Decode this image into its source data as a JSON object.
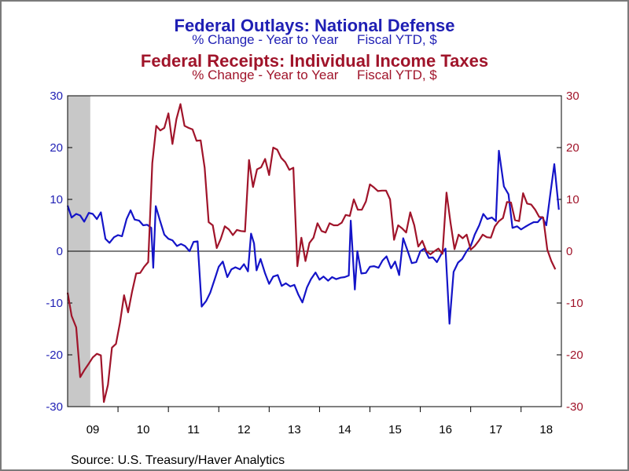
{
  "titles": {
    "line1": "Federal Outlays: National Defense",
    "line2": "% Change - Year to Year     Fiscal YTD, $",
    "line3": "Federal Receipts: Individual Income Taxes",
    "line4": "% Change - Year to Year     Fiscal YTD, $"
  },
  "source": "Source:  U.S. Treasury/Haver Analytics",
  "colors": {
    "defense": "#1414c8",
    "income_tax": "#a0142a",
    "left_axis": "#1f1fb4",
    "right_axis": "#a0142a",
    "recession": "#c8c8c8",
    "plot_bg": "#ffffff"
  },
  "chart_data": {
    "type": "line",
    "x_unit": "fiscal year",
    "x_tick_labels": [
      "09",
      "10",
      "11",
      "12",
      "13",
      "14",
      "15",
      "16",
      "17",
      "18"
    ],
    "xlim": [
      2008.7,
      2018.5
    ],
    "ylim_left": [
      -30,
      30
    ],
    "ylim_right": [
      -30,
      30
    ],
    "y_ticks": [
      -30,
      -20,
      -10,
      0,
      10,
      20,
      30
    ],
    "zero_line": true,
    "recession_shading": [
      [
        2008.7,
        2009.15
      ]
    ],
    "series": [
      {
        "axis": "left",
        "color_key": "defense",
        "points": [
          [
            2008.7,
            8.8
          ],
          [
            2008.78,
            6.5
          ],
          [
            2008.87,
            7.2
          ],
          [
            2008.95,
            6.9
          ],
          [
            2009.03,
            5.7
          ],
          [
            2009.12,
            7.4
          ],
          [
            2009.2,
            7.2
          ],
          [
            2009.28,
            6.2
          ],
          [
            2009.36,
            7.5
          ],
          [
            2009.45,
            2.4
          ],
          [
            2009.53,
            1.6
          ],
          [
            2009.62,
            2.7
          ],
          [
            2009.7,
            3.1
          ],
          [
            2009.78,
            2.9
          ],
          [
            2009.87,
            6.2
          ],
          [
            2009.95,
            7.9
          ],
          [
            2010.03,
            6.1
          ],
          [
            2010.12,
            5.9
          ],
          [
            2010.2,
            5.0
          ],
          [
            2010.28,
            5.1
          ],
          [
            2010.36,
            4.5
          ],
          [
            2010.4,
            -3.2
          ],
          [
            2010.45,
            8.7
          ],
          [
            2010.53,
            6.0
          ],
          [
            2010.62,
            3.2
          ],
          [
            2010.7,
            2.4
          ],
          [
            2010.78,
            2.1
          ],
          [
            2010.87,
            1.0
          ],
          [
            2010.95,
            1.4
          ],
          [
            2011.03,
            1.0
          ],
          [
            2011.12,
            0.0
          ],
          [
            2011.2,
            1.8
          ],
          [
            2011.28,
            1.9
          ],
          [
            2011.36,
            -10.7
          ],
          [
            2011.45,
            -9.6
          ],
          [
            2011.53,
            -8.0
          ],
          [
            2011.62,
            -5.4
          ],
          [
            2011.7,
            -3.0
          ],
          [
            2011.78,
            -2.0
          ],
          [
            2011.87,
            -5.0
          ],
          [
            2011.95,
            -3.5
          ],
          [
            2012.03,
            -3.1
          ],
          [
            2012.12,
            -3.5
          ],
          [
            2012.2,
            -2.5
          ],
          [
            2012.28,
            -3.9
          ],
          [
            2012.34,
            3.4
          ],
          [
            2012.4,
            1.5
          ],
          [
            2012.45,
            -3.7
          ],
          [
            2012.53,
            -1.5
          ],
          [
            2012.62,
            -4.3
          ],
          [
            2012.7,
            -6.3
          ],
          [
            2012.78,
            -4.9
          ],
          [
            2012.87,
            -4.6
          ],
          [
            2012.95,
            -6.7
          ],
          [
            2013.03,
            -6.2
          ],
          [
            2013.12,
            -6.8
          ],
          [
            2013.2,
            -6.5
          ],
          [
            2013.28,
            -8.4
          ],
          [
            2013.36,
            -9.9
          ],
          [
            2013.45,
            -7.0
          ],
          [
            2013.53,
            -5.4
          ],
          [
            2013.62,
            -4.1
          ],
          [
            2013.7,
            -5.5
          ],
          [
            2013.78,
            -4.9
          ],
          [
            2013.87,
            -5.7
          ],
          [
            2013.95,
            -5.0
          ],
          [
            2014.03,
            -5.4
          ],
          [
            2014.12,
            -5.1
          ],
          [
            2014.2,
            -5.0
          ],
          [
            2014.28,
            -4.7
          ],
          [
            2014.32,
            5.9
          ],
          [
            2014.4,
            -7.4
          ],
          [
            2014.45,
            0.0
          ],
          [
            2014.53,
            -4.3
          ],
          [
            2014.62,
            -4.2
          ],
          [
            2014.7,
            -3.0
          ],
          [
            2014.78,
            -2.9
          ],
          [
            2014.87,
            -3.2
          ],
          [
            2014.95,
            -1.8
          ],
          [
            2015.03,
            -1.0
          ],
          [
            2015.12,
            -3.3
          ],
          [
            2015.2,
            -2.0
          ],
          [
            2015.28,
            -4.6
          ],
          [
            2015.36,
            2.5
          ],
          [
            2015.45,
            0.0
          ],
          [
            2015.53,
            -2.3
          ],
          [
            2015.62,
            -2.1
          ],
          [
            2015.7,
            0.0
          ],
          [
            2015.78,
            0.5
          ],
          [
            2015.87,
            -1.3
          ],
          [
            2015.95,
            -1.2
          ],
          [
            2016.03,
            -2.1
          ],
          [
            2016.12,
            -0.5
          ],
          [
            2016.2,
            0.5
          ],
          [
            2016.28,
            -14.0
          ],
          [
            2016.36,
            -4.0
          ],
          [
            2016.45,
            -2.2
          ],
          [
            2016.53,
            -1.5
          ],
          [
            2016.62,
            0.0
          ],
          [
            2016.7,
            1.0
          ],
          [
            2016.78,
            3.2
          ],
          [
            2016.87,
            5.0
          ],
          [
            2016.95,
            7.2
          ],
          [
            2017.03,
            6.2
          ],
          [
            2017.12,
            6.5
          ],
          [
            2017.2,
            5.8
          ],
          [
            2017.26,
            19.4
          ],
          [
            2017.36,
            12.5
          ],
          [
            2017.45,
            11.0
          ],
          [
            2017.53,
            4.5
          ],
          [
            2017.62,
            4.8
          ],
          [
            2017.7,
            4.2
          ],
          [
            2017.78,
            4.7
          ],
          [
            2017.87,
            5.2
          ],
          [
            2017.95,
            5.6
          ],
          [
            2018.03,
            5.6
          ],
          [
            2018.12,
            6.6
          ],
          [
            2018.2,
            5.0
          ],
          [
            2018.28,
            11.0
          ],
          [
            2018.36,
            16.8
          ],
          [
            2018.45,
            8.0
          ]
        ]
      },
      {
        "axis": "right",
        "color_key": "income_tax",
        "points": [
          [
            2008.7,
            -8.0
          ],
          [
            2008.78,
            -12.5
          ],
          [
            2008.87,
            -14.7
          ],
          [
            2008.95,
            -24.3
          ],
          [
            2009.03,
            -23.0
          ],
          [
            2009.12,
            -21.7
          ],
          [
            2009.2,
            -20.5
          ],
          [
            2009.28,
            -19.8
          ],
          [
            2009.36,
            -20.1
          ],
          [
            2009.42,
            -29.1
          ],
          [
            2009.5,
            -25.8
          ],
          [
            2009.58,
            -18.6
          ],
          [
            2009.66,
            -17.9
          ],
          [
            2009.74,
            -13.8
          ],
          [
            2009.82,
            -8.5
          ],
          [
            2009.9,
            -11.8
          ],
          [
            2009.98,
            -7.8
          ],
          [
            2010.06,
            -4.3
          ],
          [
            2010.14,
            -4.2
          ],
          [
            2010.22,
            -3.0
          ],
          [
            2010.3,
            -2.1
          ],
          [
            2010.38,
            17.0
          ],
          [
            2010.46,
            24.2
          ],
          [
            2010.54,
            23.3
          ],
          [
            2010.62,
            23.8
          ],
          [
            2010.7,
            26.6
          ],
          [
            2010.78,
            20.7
          ],
          [
            2010.86,
            25.5
          ],
          [
            2010.94,
            28.4
          ],
          [
            2011.02,
            24.2
          ],
          [
            2011.1,
            23.8
          ],
          [
            2011.18,
            23.5
          ],
          [
            2011.26,
            21.3
          ],
          [
            2011.34,
            21.4
          ],
          [
            2011.42,
            16.1
          ],
          [
            2011.5,
            5.6
          ],
          [
            2011.58,
            5.0
          ],
          [
            2011.66,
            0.6
          ],
          [
            2011.74,
            2.4
          ],
          [
            2011.82,
            4.8
          ],
          [
            2011.9,
            4.2
          ],
          [
            2011.98,
            3.1
          ],
          [
            2012.06,
            4.1
          ],
          [
            2012.14,
            3.9
          ],
          [
            2012.22,
            3.8
          ],
          [
            2012.3,
            17.6
          ],
          [
            2012.38,
            12.4
          ],
          [
            2012.46,
            15.8
          ],
          [
            2012.54,
            16.2
          ],
          [
            2012.62,
            17.8
          ],
          [
            2012.7,
            14.7
          ],
          [
            2012.78,
            20.0
          ],
          [
            2012.86,
            19.6
          ],
          [
            2012.94,
            18.0
          ],
          [
            2013.02,
            17.2
          ],
          [
            2013.1,
            15.7
          ],
          [
            2013.18,
            16.1
          ],
          [
            2013.26,
            -2.9
          ],
          [
            2013.34,
            2.6
          ],
          [
            2013.42,
            -1.9
          ],
          [
            2013.5,
            1.6
          ],
          [
            2013.58,
            2.6
          ],
          [
            2013.66,
            5.4
          ],
          [
            2013.74,
            3.9
          ],
          [
            2013.82,
            3.6
          ],
          [
            2013.9,
            5.4
          ],
          [
            2013.98,
            5.0
          ],
          [
            2014.06,
            5.0
          ],
          [
            2014.14,
            5.5
          ],
          [
            2014.22,
            7.0
          ],
          [
            2014.3,
            6.8
          ],
          [
            2014.38,
            10.0
          ],
          [
            2014.46,
            8.0
          ],
          [
            2014.54,
            8.0
          ],
          [
            2014.62,
            9.6
          ],
          [
            2014.7,
            12.9
          ],
          [
            2014.78,
            12.3
          ],
          [
            2014.86,
            11.6
          ],
          [
            2014.94,
            11.7
          ],
          [
            2015.02,
            11.7
          ],
          [
            2015.1,
            10.0
          ],
          [
            2015.18,
            2.2
          ],
          [
            2015.26,
            5.0
          ],
          [
            2015.34,
            4.4
          ],
          [
            2015.42,
            3.6
          ],
          [
            2015.5,
            7.5
          ],
          [
            2015.58,
            5.0
          ],
          [
            2015.66,
            0.9
          ],
          [
            2015.74,
            2.0
          ],
          [
            2015.82,
            0.0
          ],
          [
            2015.9,
            -0.6
          ],
          [
            2015.98,
            0.0
          ],
          [
            2016.06,
            0.5
          ],
          [
            2016.14,
            -0.5
          ],
          [
            2016.22,
            11.3
          ],
          [
            2016.3,
            5.5
          ],
          [
            2016.38,
            0.4
          ],
          [
            2016.46,
            3.2
          ],
          [
            2016.54,
            2.5
          ],
          [
            2016.62,
            3.2
          ],
          [
            2016.7,
            0.3
          ],
          [
            2016.78,
            1.0
          ],
          [
            2016.86,
            2.0
          ],
          [
            2016.94,
            3.2
          ],
          [
            2017.02,
            2.7
          ],
          [
            2017.1,
            2.6
          ],
          [
            2017.18,
            4.8
          ],
          [
            2017.26,
            5.8
          ],
          [
            2017.34,
            6.4
          ],
          [
            2017.42,
            9.5
          ],
          [
            2017.5,
            9.4
          ],
          [
            2017.58,
            6.0
          ],
          [
            2017.66,
            5.8
          ],
          [
            2017.74,
            11.2
          ],
          [
            2017.82,
            9.2
          ],
          [
            2017.9,
            9.0
          ],
          [
            2017.98,
            8.0
          ],
          [
            2018.06,
            6.6
          ],
          [
            2018.14,
            6.5
          ],
          [
            2018.22,
            0.3
          ],
          [
            2018.3,
            -1.9
          ],
          [
            2018.38,
            -3.5
          ]
        ]
      }
    ]
  }
}
